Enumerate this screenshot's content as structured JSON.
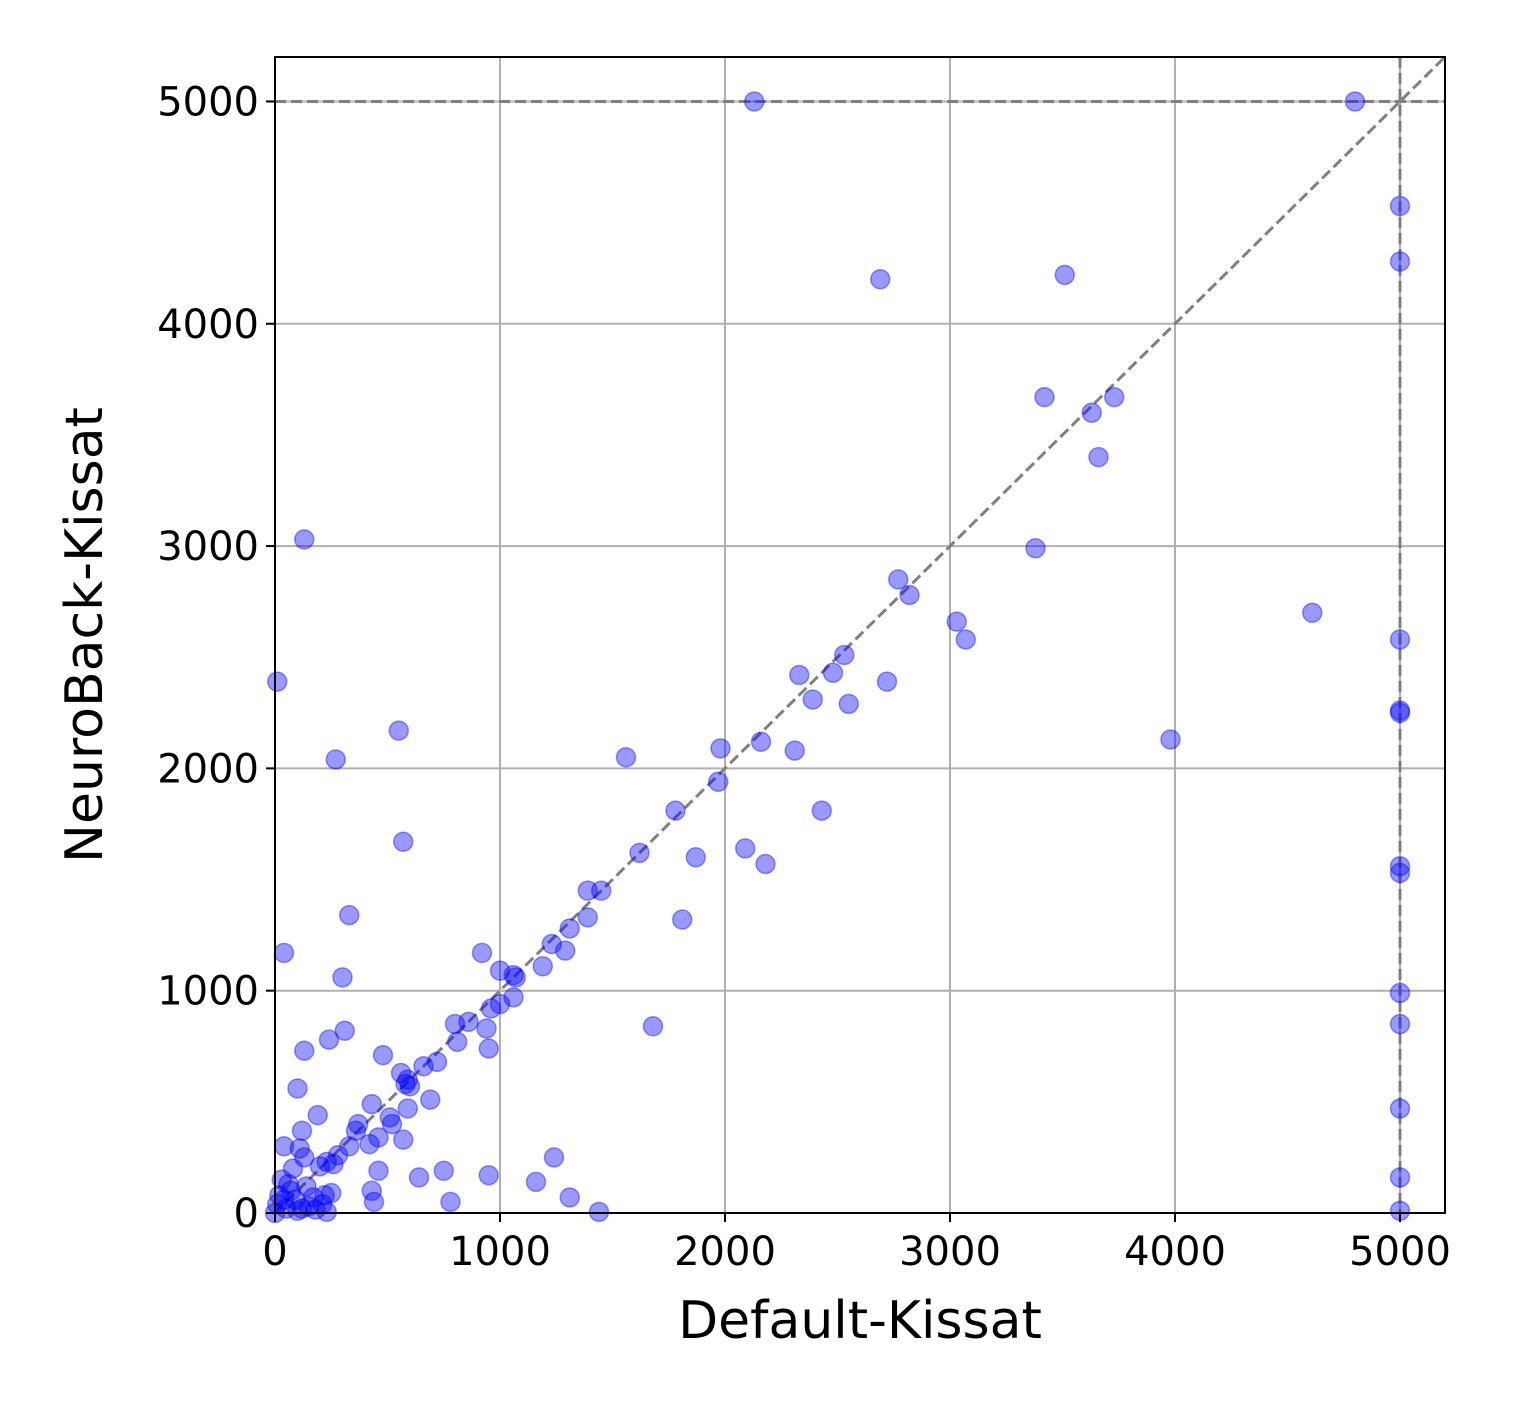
{
  "chart_data": {
    "type": "scatter",
    "title": "",
    "xlabel": "Default-Kissat",
    "ylabel": "NeuroBack-Kissat",
    "xlim": [
      0,
      5200
    ],
    "ylim": [
      0,
      5200
    ],
    "xticks": [
      0,
      1000,
      2000,
      3000,
      4000,
      5000
    ],
    "yticks": [
      0,
      1000,
      2000,
      3000,
      4000,
      5000
    ],
    "xtick_labels": [
      "0",
      "1000",
      "2000",
      "3000",
      "4000",
      "5000"
    ],
    "ytick_labels": [
      "0",
      "1000",
      "2000",
      "3000",
      "4000",
      "5000"
    ],
    "grid": true,
    "timeout": 5000,
    "reference_lines": [
      "y = x diagonal",
      "x = 5000 timeout",
      "y = 5000 timeout"
    ],
    "point_color": "#0000ff",
    "point_alpha": 0.4,
    "points": [
      [
        2130,
        5000
      ],
      [
        4800,
        5000
      ],
      [
        5000,
        4530
      ],
      [
        5000,
        4280
      ],
      [
        5000,
        2580
      ],
      [
        5000,
        2260
      ],
      [
        5000,
        2250
      ],
      [
        5000,
        1560
      ],
      [
        5000,
        1530
      ],
      [
        5000,
        990
      ],
      [
        5000,
        850
      ],
      [
        5000,
        470
      ],
      [
        5000,
        160
      ],
      [
        5000,
        10
      ],
      [
        2690,
        4200
      ],
      [
        3510,
        4220
      ],
      [
        3420,
        3670
      ],
      [
        3730,
        3670
      ],
      [
        3630,
        3600
      ],
      [
        3660,
        3400
      ],
      [
        3380,
        2990
      ],
      [
        2770,
        2850
      ],
      [
        2820,
        2780
      ],
      [
        3030,
        2660
      ],
      [
        3070,
        2580
      ],
      [
        4610,
        2700
      ],
      [
        3980,
        2130
      ],
      [
        2330,
        2420
      ],
      [
        2480,
        2430
      ],
      [
        2530,
        2510
      ],
      [
        2390,
        2310
      ],
      [
        2550,
        2290
      ],
      [
        2720,
        2390
      ],
      [
        2160,
        2120
      ],
      [
        2310,
        2080
      ],
      [
        1980,
        2090
      ],
      [
        1970,
        1940
      ],
      [
        1780,
        1810
      ],
      [
        2430,
        1810
      ],
      [
        2090,
        1640
      ],
      [
        2180,
        1570
      ],
      [
        1620,
        1620
      ],
      [
        1870,
        1600
      ],
      [
        1560,
        2050
      ],
      [
        1390,
        1450
      ],
      [
        1450,
        1450
      ],
      [
        1810,
        1320
      ],
      [
        1310,
        1280
      ],
      [
        1390,
        1330
      ],
      [
        1230,
        1210
      ],
      [
        1290,
        1180
      ],
      [
        1190,
        1110
      ],
      [
        920,
        1170
      ],
      [
        1000,
        1090
      ],
      [
        1060,
        1070
      ],
      [
        1070,
        1060
      ],
      [
        1060,
        970
      ],
      [
        1000,
        940
      ],
      [
        960,
        920
      ],
      [
        940,
        830
      ],
      [
        950,
        740
      ],
      [
        860,
        860
      ],
      [
        800,
        850
      ],
      [
        810,
        770
      ],
      [
        720,
        680
      ],
      [
        660,
        660
      ],
      [
        690,
        510
      ],
      [
        1680,
        840
      ],
      [
        1240,
        250
      ],
      [
        1160,
        140
      ],
      [
        1310,
        70
      ],
      [
        1440,
        5
      ],
      [
        950,
        170
      ],
      [
        750,
        190
      ],
      [
        780,
        50
      ],
      [
        640,
        160
      ],
      [
        130,
        3030
      ],
      [
        10,
        2390
      ],
      [
        550,
        2170
      ],
      [
        270,
        2040
      ],
      [
        570,
        1670
      ],
      [
        330,
        1340
      ],
      [
        40,
        1170
      ],
      [
        300,
        1060
      ],
      [
        310,
        820
      ],
      [
        240,
        780
      ],
      [
        130,
        730
      ],
      [
        480,
        710
      ],
      [
        100,
        560
      ],
      [
        560,
        630
      ],
      [
        590,
        600
      ],
      [
        580,
        580
      ],
      [
        600,
        570
      ],
      [
        590,
        470
      ],
      [
        510,
        430
      ],
      [
        430,
        490
      ],
      [
        190,
        440
      ],
      [
        370,
        400
      ],
      [
        520,
        400
      ],
      [
        460,
        340
      ],
      [
        570,
        330
      ],
      [
        420,
        310
      ],
      [
        360,
        370
      ],
      [
        330,
        300
      ],
      [
        260,
        220
      ],
      [
        280,
        260
      ],
      [
        120,
        370
      ],
      [
        40,
        300
      ],
      [
        110,
        290
      ],
      [
        130,
        250
      ],
      [
        80,
        200
      ],
      [
        200,
        210
      ],
      [
        230,
        230
      ],
      [
        460,
        190
      ],
      [
        430,
        100
      ],
      [
        440,
        50
      ],
      [
        250,
        90
      ],
      [
        220,
        80
      ],
      [
        170,
        70
      ],
      [
        210,
        40
      ],
      [
        150,
        30
      ],
      [
        120,
        20
      ],
      [
        90,
        60
      ],
      [
        60,
        130
      ],
      [
        30,
        150
      ],
      [
        20,
        80
      ],
      [
        10,
        40
      ],
      [
        50,
        20
      ],
      [
        100,
        10
      ],
      [
        180,
        15
      ],
      [
        230,
        5
      ],
      [
        70,
        100
      ],
      [
        140,
        120
      ],
      [
        40,
        60
      ],
      [
        0,
        0
      ]
    ]
  }
}
